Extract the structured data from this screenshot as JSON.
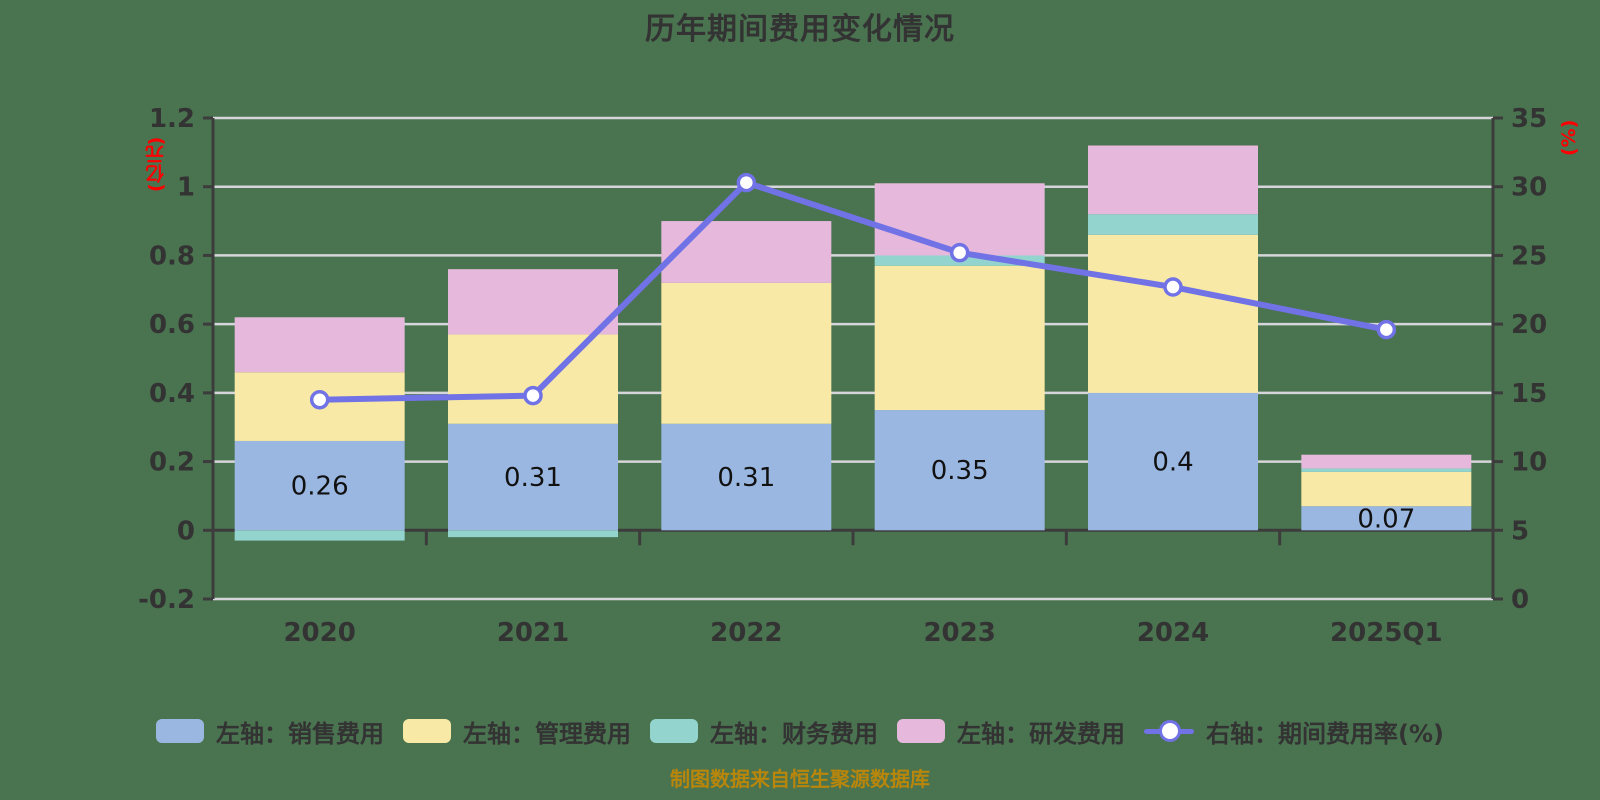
{
  "title": "历年期间费用变化情况",
  "source_note": "制图数据来自恒生聚源数据库",
  "colors": {
    "background": "#4A7350",
    "grid": "#D6D6DA",
    "axis": "#3C3C3C",
    "text": "#333333",
    "bar_label": "#111111",
    "unit_label": "#FF0000",
    "footer": "#B8860B",
    "sales": "#9AB7E2",
    "management": "#F8E9A6",
    "finance": "#93D4CE",
    "rnd": "#E6B9DC",
    "rate_line": "#7172E6"
  },
  "chart_data": {
    "type": "bar",
    "subtype": "stacked bars with overlay line (dual axis)",
    "categories": [
      "2020",
      "2021",
      "2022",
      "2023",
      "2024",
      "2025Q1"
    ],
    "series": [
      {
        "name": "左轴：销售费用",
        "type": "bar",
        "stack": "total",
        "axis": "left",
        "color_key": "sales",
        "values": [
          0.26,
          0.31,
          0.31,
          0.35,
          0.4,
          0.07
        ],
        "data_labels": [
          "0.26",
          "0.31",
          "0.31",
          "0.35",
          "0.4",
          "0.07"
        ]
      },
      {
        "name": "左轴：管理费用",
        "type": "bar",
        "stack": "total",
        "axis": "left",
        "color_key": "management",
        "values": [
          0.2,
          0.26,
          0.41,
          0.42,
          0.46,
          0.1
        ]
      },
      {
        "name": "左轴：财务费用",
        "type": "bar",
        "stack": "total",
        "axis": "left",
        "color_key": "finance",
        "values": [
          -0.03,
          -0.02,
          0,
          0.03,
          0.06,
          0.01
        ]
      },
      {
        "name": "左轴：研发费用",
        "type": "bar",
        "stack": "total",
        "axis": "left",
        "color_key": "rnd",
        "values": [
          0.16,
          0.19,
          0.18,
          0.21,
          0.2,
          0.04
        ]
      },
      {
        "name": "右轴：期间费用率(%)",
        "type": "line",
        "axis": "right",
        "color_key": "rate_line",
        "values": [
          14.5,
          14.8,
          30.3,
          25.2,
          22.7,
          19.6
        ]
      }
    ],
    "left_axis": {
      "unit": "(亿元)",
      "min": -0.2,
      "max": 1.2,
      "tick_values": [
        1.2,
        1,
        0.8,
        0.6,
        0.4,
        0.2,
        0,
        -0.2
      ],
      "tick_labels": [
        "1.2",
        "1",
        "0.8",
        "0.6",
        "0.4",
        "0.2",
        "0",
        "-0.2"
      ]
    },
    "right_axis": {
      "unit": "(%)",
      "min": 0,
      "max": 35,
      "tick_values": [
        35,
        30,
        25,
        20,
        15,
        10,
        5,
        0
      ],
      "tick_labels": [
        "35",
        "30",
        "25",
        "20",
        "15",
        "10",
        "5",
        "0"
      ]
    },
    "legend_position": "bottom",
    "grid": true
  }
}
